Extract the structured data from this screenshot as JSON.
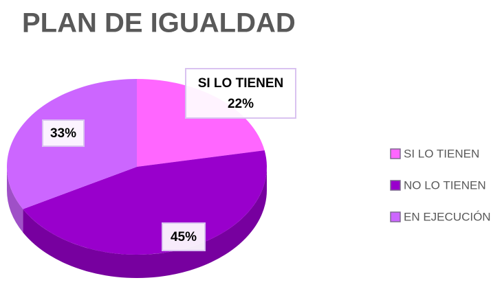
{
  "chart_data": {
    "type": "pie",
    "title": "PLAN DE IGUALDAD",
    "categories": [
      "SI LO TIENEN",
      "NO LO TIENEN",
      "EN EJECUCIÓN"
    ],
    "values": [
      22,
      45,
      33
    ],
    "value_labels": [
      "22%",
      "45%",
      "33%"
    ],
    "colors": [
      "#ff66ff",
      "#9900cc",
      "#cc66ff"
    ],
    "legend": "right"
  }
}
